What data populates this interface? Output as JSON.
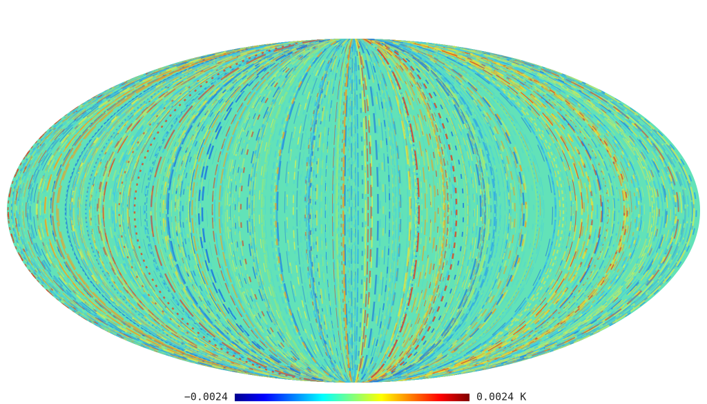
{
  "colorbar": {
    "min_label": "−0.0024",
    "max_label": "0.0024 K"
  }
}
